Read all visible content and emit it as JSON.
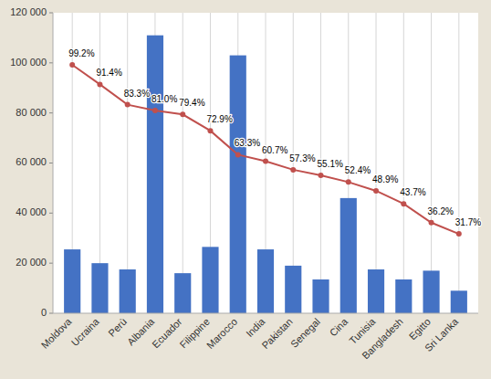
{
  "chart_data": {
    "type": "bar",
    "categories": [
      "Moldova",
      "Ucraina",
      "Perù",
      "Albania",
      "Ecuador",
      "Filippine",
      "Marocco",
      "India",
      "Pakistan",
      "Senegal",
      "Cina",
      "Tunisia",
      "Bangladesh",
      "Egitto",
      "Sri Lanka"
    ],
    "series": [
      {
        "type": "bar",
        "color": "#4472C4",
        "values": [
          25500,
          20000,
          17500,
          111000,
          16000,
          26500,
          103000,
          25500,
          19000,
          13500,
          46000,
          17500,
          13500,
          17000,
          9000
        ]
      },
      {
        "type": "line",
        "axis": "y2",
        "color": "#C0504D",
        "marker": "circle",
        "data_labels": true,
        "values": [
          99.2,
          91.4,
          83.3,
          81.0,
          79.4,
          72.9,
          63.3,
          60.7,
          57.3,
          55.1,
          52.4,
          48.9,
          43.7,
          36.2,
          31.7
        ],
        "value_labels": [
          "99.2%",
          "91.4%",
          "83.3%",
          "81.0%",
          "79.4%",
          "72.9%",
          "63.3%",
          "60.7%",
          "57.3%",
          "55.1%",
          "52.4%",
          "48.9%",
          "43.7%",
          "36.2%",
          "31.7%"
        ]
      }
    ],
    "ylim": [
      0,
      120000
    ],
    "yticks": [
      0,
      {
        "value": 20000,
        "label": "20 000"
      },
      {
        "value": 40000,
        "label": "40 000"
      },
      {
        "value": 60000,
        "label": "60 000"
      },
      {
        "value": 80000,
        "label": "80 000"
      },
      {
        "value": 100000,
        "label": "100 000"
      },
      {
        "value": 120000,
        "label": "120 000"
      }
    ],
    "y2lim": [
      0,
      120
    ],
    "grid": "x"
  }
}
